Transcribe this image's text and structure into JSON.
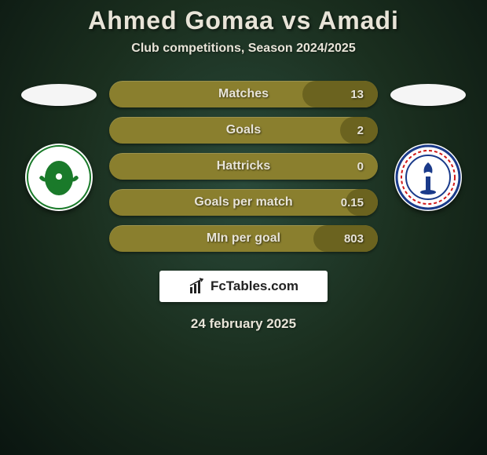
{
  "header": {
    "title": "Ahmed Gomaa vs Amadi",
    "subtitle": "Club competitions, Season 2024/2025"
  },
  "colors": {
    "bar_bg": "#8a7f2e",
    "bar_fill": "#6b631f",
    "text_light": "#e8e4d8",
    "badge_bg": "#ffffff"
  },
  "stats": [
    {
      "label": "Matches",
      "right_value": "13",
      "fill_right_pct": 28
    },
    {
      "label": "Goals",
      "right_value": "2",
      "fill_right_pct": 14
    },
    {
      "label": "Hattricks",
      "right_value": "0",
      "fill_right_pct": 0
    },
    {
      "label": "Goals per match",
      "right_value": "0.15",
      "fill_right_pct": 12
    },
    {
      "label": "MIn per goal",
      "right_value": "803",
      "fill_right_pct": 24
    }
  ],
  "left_team": {
    "logo_primary": "#1a7a2a",
    "logo_secondary": "#ffffff"
  },
  "right_team": {
    "logo_primary": "#1a3a8a",
    "logo_secondary": "#d01818",
    "logo_accent": "#ffffff"
  },
  "brand": {
    "text": "FcTables.com"
  },
  "footer": {
    "date": "24 february 2025"
  }
}
